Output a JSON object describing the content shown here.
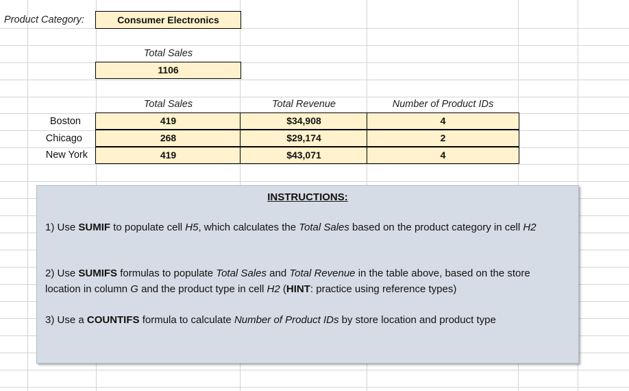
{
  "category": {
    "label": "Product Category:",
    "value": "Consumer Electronics"
  },
  "total": {
    "header": "Total Sales",
    "value": "1106"
  },
  "table": {
    "headers": [
      "Total Sales",
      "Total Revenue",
      "Number of Product IDs"
    ],
    "rows": [
      {
        "city": "Boston",
        "sales": "419",
        "revenue": "$34,908",
        "ids": "4"
      },
      {
        "city": "Chicago",
        "sales": "268",
        "revenue": "$29,174",
        "ids": "2"
      },
      {
        "city": "New York",
        "sales": "419",
        "revenue": "$43,071",
        "ids": "4"
      }
    ]
  },
  "instructions": {
    "title": "INSTRUCTIONS:",
    "i1": {
      "a": "1) Use ",
      "b": "SUMIF",
      "c": " to populate cell ",
      "d": "H5",
      "e": ", which calculates the ",
      "f": "Total Sales",
      "g": " based on the product category in cell ",
      "h": "H2"
    },
    "i2": {
      "a": "2) Use ",
      "b": "SUMIFS",
      "c": " formulas to populate ",
      "d": "Total Sales",
      "e": " and ",
      "f": "Total Revenue",
      "g": " in the table above, based on the store location in column ",
      "h": "G",
      "i": " and the product type in cell ",
      "j": "H2",
      "k": " (",
      "l": "HINT",
      "m": ": practice using reference types)"
    },
    "i3": {
      "a": "3) Use a ",
      "b": "COUNTIFS",
      "c": " formula to calculate ",
      "d": "Number of Product IDs",
      "e": " by store location and product type"
    }
  },
  "colors": {
    "cell_fill": "#fff2cc",
    "panel_fill": "#d6dce5",
    "gridline": "#d4d4d4"
  }
}
